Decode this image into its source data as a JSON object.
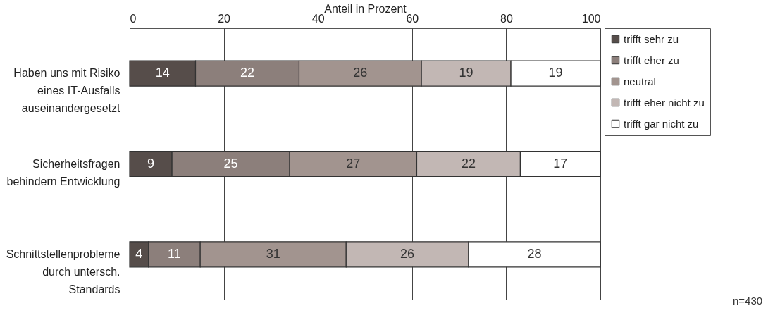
{
  "chart_data": {
    "type": "bar",
    "orientation": "horizontal",
    "stacked": true,
    "xlabel": "Anteil in Prozent",
    "categories": [
      "Haben uns mit Risiko eines IT-Ausfalls auseinandergesetzt",
      "Sicherheitsfragen behindern Entwicklung",
      "Schnittstellenprobleme durch untersch. Standards"
    ],
    "series": [
      {
        "name": "trifft sehr zu",
        "color": "#564d4a",
        "values": [
          14,
          9,
          4
        ]
      },
      {
        "name": "trifft eher zu",
        "color": "#8c7f7b",
        "values": [
          22,
          25,
          11
        ]
      },
      {
        "name": "neutral",
        "color": "#a2948f",
        "values": [
          26,
          27,
          31
        ]
      },
      {
        "name": "trifft eher nicht zu",
        "color": "#c2b7b4",
        "values": [
          19,
          22,
          26
        ]
      },
      {
        "name": "trifft gar nicht zu",
        "color": "#ffffff",
        "values": [
          19,
          17,
          28
        ]
      }
    ],
    "xlim": [
      0,
      100
    ],
    "xticks": [
      0,
      20,
      40,
      60,
      80,
      100
    ],
    "grid": "x",
    "legend": "right",
    "data_labels": true,
    "annotations": [
      "n=430"
    ]
  }
}
